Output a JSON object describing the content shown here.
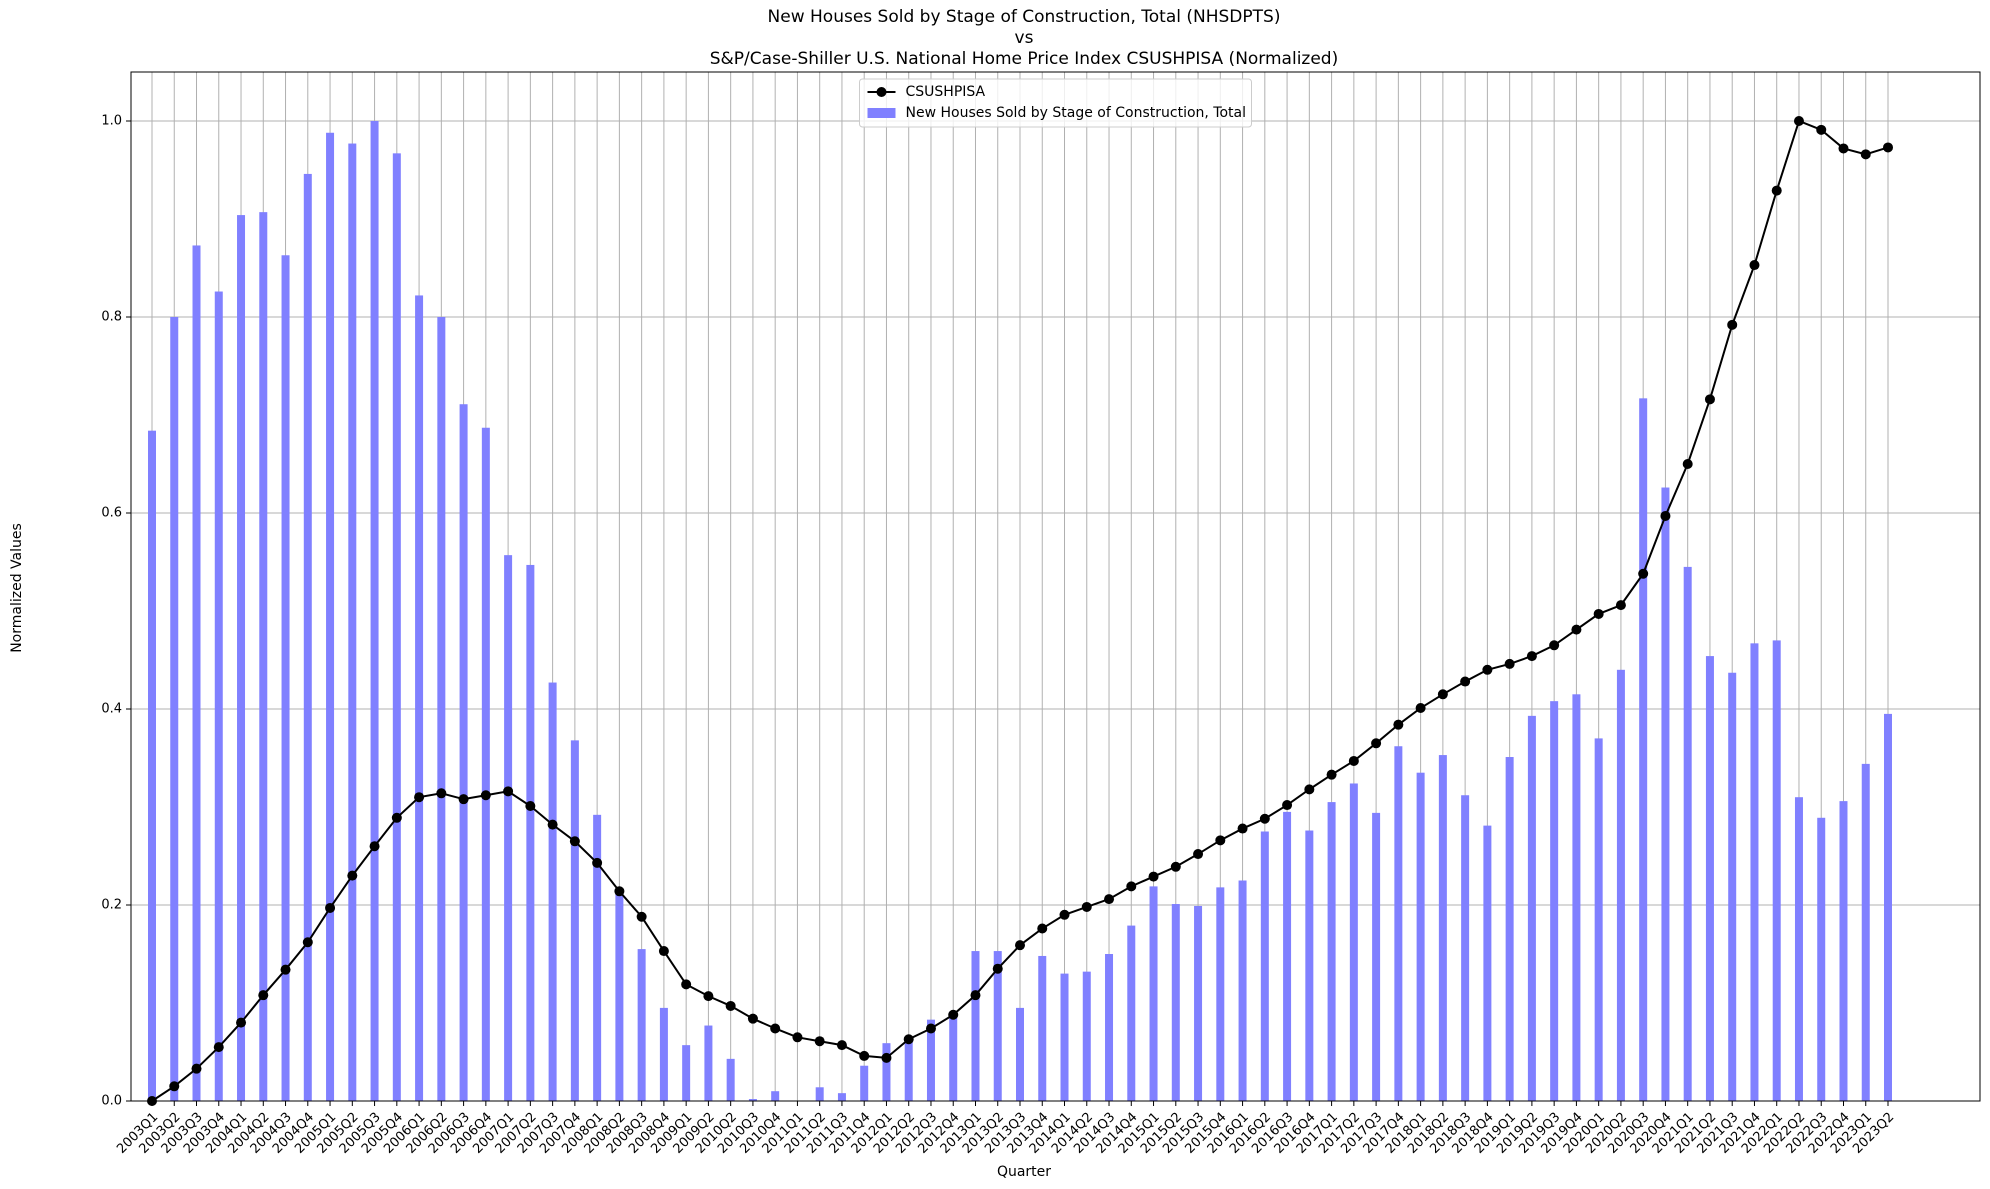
{
  "chart_data": {
    "type": "bar_line",
    "title": [
      "New Houses Sold by Stage of Construction, Total (NHSDPTS)",
      "vs",
      "S&P/Case-Shiller U.S. National Home Price Index CSUSHPISA (Normalized)"
    ],
    "x_label": "Quarter",
    "y_label": "Normalized Values",
    "categories": [
      "2003Q1",
      "2003Q2",
      "2003Q3",
      "2003Q4",
      "2004Q1",
      "2004Q2",
      "2004Q3",
      "2004Q4",
      "2005Q1",
      "2005Q2",
      "2005Q3",
      "2005Q4",
      "2006Q1",
      "2006Q2",
      "2006Q3",
      "2006Q4",
      "2007Q1",
      "2007Q2",
      "2007Q3",
      "2007Q4",
      "2008Q1",
      "2008Q2",
      "2008Q3",
      "2008Q4",
      "2009Q1",
      "2009Q2",
      "2010Q2",
      "2010Q3",
      "2010Q4",
      "2011Q1",
      "2011Q2",
      "2011Q3",
      "2011Q4",
      "2012Q1",
      "2012Q2",
      "2012Q3",
      "2012Q4",
      "2013Q1",
      "2013Q2",
      "2013Q3",
      "2013Q4",
      "2014Q1",
      "2014Q2",
      "2014Q3",
      "2014Q4",
      "2015Q1",
      "2015Q2",
      "2015Q3",
      "2015Q4",
      "2016Q1",
      "2016Q2",
      "2016Q3",
      "2016Q4",
      "2017Q1",
      "2017Q2",
      "2017Q3",
      "2017Q4",
      "2018Q1",
      "2018Q2",
      "2018Q3",
      "2018Q4",
      "2019Q1",
      "2019Q2",
      "2019Q3",
      "2019Q4",
      "2020Q1",
      "2020Q2",
      "2020Q3",
      "2020Q4",
      "2021Q1",
      "2021Q2",
      "2021Q3",
      "2021Q4",
      "2022Q1",
      "2022Q2",
      "2022Q3",
      "2022Q4",
      "2023Q1",
      "2023Q2"
    ],
    "series": [
      {
        "name": "CSUSHPISA",
        "kind": "line",
        "color": "#000000",
        "values": [
          0,
          0.015,
          0.033,
          0.055,
          0.08,
          0.108,
          0.134,
          0.162,
          0.197,
          0.23,
          0.26,
          0.289,
          0.31,
          0.314,
          0.308,
          0.312,
          0.316,
          0.301,
          0.282,
          0.265,
          0.243,
          0.214,
          0.188,
          0.153,
          0.119,
          0.107,
          0.097,
          0.084,
          0.074,
          0.065,
          0.061,
          0.057,
          0.046,
          0.044,
          0.063,
          0.074,
          0.088,
          0.108,
          0.135,
          0.159,
          0.176,
          0.19,
          0.198,
          0.206,
          0.219,
          0.229,
          0.239,
          0.252,
          0.266,
          0.278,
          0.288,
          0.302,
          0.318,
          0.333,
          0.347,
          0.365,
          0.384,
          0.401,
          0.415,
          0.428,
          0.44,
          0.446,
          0.454,
          0.465,
          0.481,
          0.497,
          0.506,
          0.538,
          0.597,
          0.65,
          0.716,
          0.792,
          0.853,
          0.929,
          1.0,
          0.991,
          0.972,
          0.966,
          0.973
        ]
      },
      {
        "name": "New Houses Sold by Stage of Construction, Total",
        "kind": "bar",
        "color": "#8080ff",
        "values": [
          0.684,
          0.8,
          0.873,
          0.826,
          0.904,
          0.907,
          0.863,
          0.946,
          0.988,
          0.977,
          1.0,
          0.967,
          0.822,
          0.8,
          0.711,
          0.687,
          0.557,
          0.547,
          0.427,
          0.368,
          0.292,
          0.215,
          0.155,
          0.095,
          0.057,
          0.077,
          0.043,
          0.002,
          0.01,
          0,
          0.014,
          0.008,
          0.036,
          0.059,
          0.066,
          0.083,
          0.091,
          0.153,
          0.153,
          0.095,
          0.148,
          0.13,
          0.132,
          0.15,
          0.179,
          0.219,
          0.201,
          0.199,
          0.218,
          0.225,
          0.275,
          0.295,
          0.276,
          0.305,
          0.324,
          0.294,
          0.362,
          0.335,
          0.353,
          0.312,
          0.281,
          0.351,
          0.393,
          0.408,
          0.415,
          0.37,
          0.44,
          0.717,
          0.626,
          0.545,
          0.454,
          0.437,
          0.467,
          0.47,
          0.31,
          0.289,
          0.306,
          0.344,
          0.395
        ]
      }
    ],
    "ylim": [
      0,
      1.05
    ],
    "yticks": [
      {
        "value": 0,
        "label": "0.0"
      },
      0.2,
      0.4,
      0.6,
      0.8,
      {
        "value": 1,
        "label": "1.0"
      }
    ],
    "grid": true,
    "legend": "upper center"
  }
}
